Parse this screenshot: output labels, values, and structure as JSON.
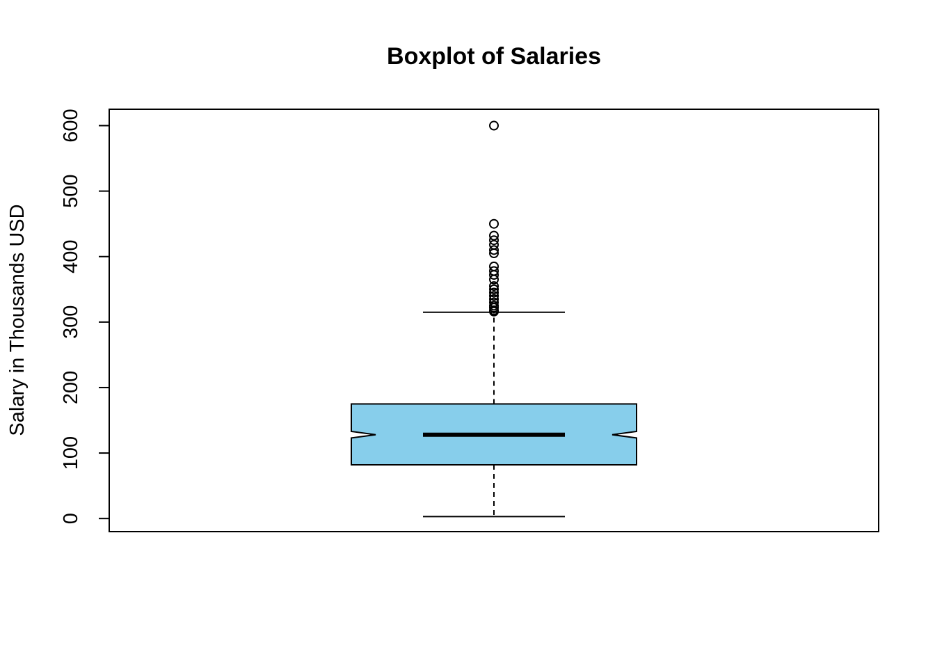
{
  "chart_data": {
    "type": "boxplot",
    "title": "Boxplot of Salaries",
    "xlabel": "",
    "ylabel": "Salary in Thousands USD",
    "ylim": [
      -20,
      625
    ],
    "yticks": [
      0,
      100,
      200,
      300,
      400,
      500,
      600
    ],
    "grid": false,
    "notched": true,
    "box": {
      "min": 3,
      "q1": 82,
      "median": 128,
      "q3": 175,
      "max": 315,
      "notch_low": 123,
      "notch_high": 133
    },
    "outliers": [
      600,
      450,
      432,
      425,
      418,
      410,
      405,
      385,
      378,
      372,
      365,
      355,
      350,
      345,
      340,
      335,
      330,
      325,
      322,
      318,
      316
    ],
    "colors": {
      "box_fill": "#87CEEB",
      "stroke": "#000000"
    }
  }
}
